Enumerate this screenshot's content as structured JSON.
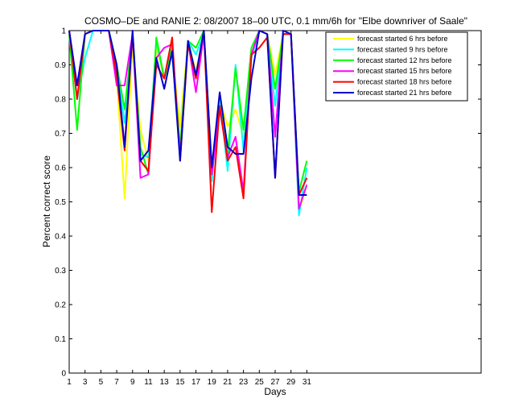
{
  "chart_data": {
    "type": "line",
    "title": "COSMO–DE and RANIE 2: 08/2007 18–00 UTC, 0.1 mm/6h for \"Elbe downriver of Saale\"",
    "xlabel": "Days",
    "ylabel": "Percent correct score",
    "xlim": [
      1,
      53
    ],
    "ylim": [
      0,
      1
    ],
    "x_ticks": [
      1,
      3,
      5,
      7,
      9,
      11,
      13,
      15,
      17,
      19,
      21,
      23,
      25,
      27,
      29,
      31
    ],
    "x_tick_labels": [
      "1",
      "3",
      "5",
      "7",
      "9",
      "11",
      "13",
      "15",
      "17",
      "19",
      "21",
      "23",
      "25",
      "27",
      "29",
      "31"
    ],
    "y_ticks": [
      0,
      0.1,
      0.2,
      0.3,
      0.4,
      0.5,
      0.6,
      0.7,
      0.8,
      0.9,
      1
    ],
    "y_tick_labels": [
      "0",
      "0.1",
      "0.2",
      "0.3",
      "0.4",
      "0.5",
      "0.6",
      "0.7",
      "0.8",
      "0.9",
      "1"
    ],
    "grid": false,
    "legend_position": "top-right",
    "x": [
      1,
      2,
      3,
      4,
      5,
      6,
      7,
      8,
      9,
      10,
      11,
      12,
      13,
      14,
      15,
      16,
      17,
      18,
      19,
      20,
      21,
      22,
      23,
      24,
      25,
      26,
      27,
      28,
      29,
      30,
      31
    ],
    "series": [
      {
        "name": "forecast started 6 hrs before",
        "color": "#ffff00",
        "values": [
          1,
          0.8,
          0.99,
          1,
          1,
          1,
          0.86,
          0.51,
          0.96,
          0.71,
          0.62,
          0.95,
          0.86,
          0.93,
          0.72,
          0.97,
          0.88,
          0.99,
          0.6,
          0.8,
          0.72,
          0.77,
          0.69,
          0.93,
          1,
          0.99,
          0.87,
          0.99,
          0.99,
          0.47,
          0.55
        ]
      },
      {
        "name": "forecast started 9 hrs before",
        "color": "#00ffff",
        "values": [
          1,
          0.8,
          0.92,
          1,
          1,
          1,
          0.89,
          0.73,
          0.98,
          0.64,
          0.63,
          0.97,
          0.86,
          0.93,
          0.64,
          0.97,
          0.93,
          0.99,
          0.56,
          0.81,
          0.59,
          0.9,
          0.65,
          0.92,
          1,
          0.99,
          0.78,
          0.99,
          0.99,
          0.46,
          0.6
        ]
      },
      {
        "name": "forecast started 12 hrs before",
        "color": "#00ff00",
        "values": [
          0.99,
          0.71,
          0.99,
          1,
          1,
          1,
          0.9,
          0.77,
          0.99,
          0.66,
          0.58,
          0.98,
          0.86,
          0.95,
          0.66,
          0.97,
          0.95,
          1,
          0.6,
          0.78,
          0.64,
          0.89,
          0.71,
          0.95,
          1,
          0.99,
          0.83,
          0.99,
          0.99,
          0.53,
          0.62
        ]
      },
      {
        "name": "forecast started 15 hrs before",
        "color": "#ff00ff",
        "values": [
          1,
          0.84,
          0.99,
          1,
          1,
          1,
          0.84,
          0.84,
          0.99,
          0.57,
          0.58,
          0.92,
          0.95,
          0.96,
          0.63,
          0.97,
          0.82,
          0.99,
          0.58,
          0.77,
          0.63,
          0.69,
          0.53,
          0.93,
          1,
          0.99,
          0.69,
          0.99,
          0.99,
          0.48,
          0.55
        ]
      },
      {
        "name": "forecast started 18 hrs before",
        "color": "#ff0000",
        "values": [
          1,
          0.8,
          0.99,
          1,
          1,
          1,
          0.87,
          0.65,
          0.99,
          0.62,
          0.59,
          0.9,
          0.86,
          0.98,
          0.62,
          0.96,
          0.86,
          1,
          0.47,
          0.78,
          0.62,
          0.66,
          0.51,
          0.93,
          0.95,
          0.98,
          0.57,
          0.99,
          0.99,
          0.52,
          0.57
        ]
      },
      {
        "name": "forecast started 21 hrs before",
        "color": "#0000cc",
        "values": [
          1,
          0.84,
          0.99,
          1,
          1,
          1,
          0.9,
          0.66,
          1,
          0.62,
          0.65,
          0.92,
          0.83,
          0.94,
          0.62,
          0.97,
          0.87,
          1,
          0.6,
          0.82,
          0.66,
          0.64,
          0.64,
          0.86,
          1,
          0.99,
          0.57,
          1,
          0.99,
          0.52,
          0.52
        ]
      }
    ]
  }
}
